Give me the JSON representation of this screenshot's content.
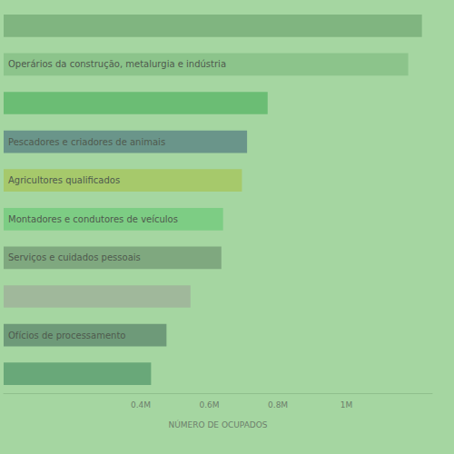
{
  "chart_data": {
    "type": "bar",
    "orientation": "horizontal",
    "categories": [
      null,
      "Operários da construção, metalurgia e indústria",
      null,
      "Pescadores e criadores de animais",
      "Agricultores qualificados",
      "Montadores e condutores de veículos",
      "Serviços e cuidados pessoais",
      null,
      "Ofícios de processamento",
      null
    ],
    "values": [
      1220000,
      1180000,
      770000,
      710000,
      695000,
      640000,
      635000,
      545000,
      475000,
      430000
    ],
    "colors": [
      "#80b580",
      "#8cc48b",
      "#6bbd74",
      "#6a958a",
      "#a6c96b",
      "#7dcd84",
      "#7fa87f",
      "#a0b89b",
      "#6e9a79",
      "#69a879"
    ],
    "xlabel": "NÚMERO DE OCUPADOS",
    "xlim": [
      0,
      1250000
    ],
    "xticks": [
      {
        "value": 400000,
        "label": "0.4M"
      },
      {
        "value": 600000,
        "label": "0.6M"
      },
      {
        "value": 800000,
        "label": "0.8M"
      },
      {
        "value": 1000000,
        "label": "1M"
      }
    ],
    "tick_labels": "x",
    "grid": false
  }
}
